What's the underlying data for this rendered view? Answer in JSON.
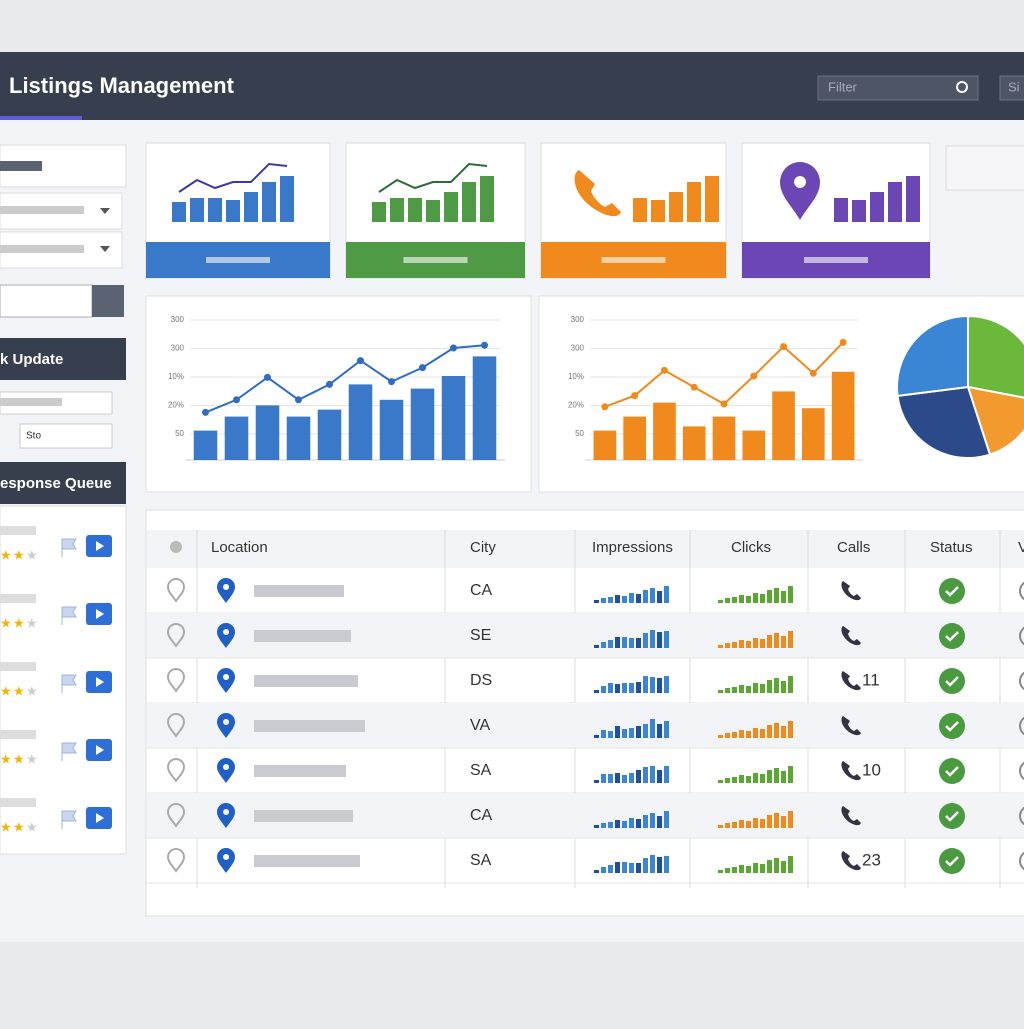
{
  "header": {
    "title": "Listings Management",
    "filter": "Filter",
    "search": "Si"
  },
  "sidebar": {
    "bulk_update": "k Update",
    "bulk_field": "Sto",
    "response_queue": "esponse Queue"
  },
  "kpi_cards": [
    {
      "color": "#3a78c9"
    },
    {
      "color": "#4e9a45"
    },
    {
      "color": "#f08a1c"
    },
    {
      "color": "#6b47b5"
    }
  ],
  "charts": [
    {
      "type": "bar",
      "tick_labels": [
        "300",
        "300",
        "10%",
        "20%",
        "50"
      ],
      "ylim": [
        0,
        100
      ],
      "bar_color": "#3a78c9",
      "line_color": "#2f6cc4",
      "bars": [
        21,
        31,
        39,
        31,
        36,
        54,
        43,
        51,
        60,
        74
      ],
      "line": [
        34,
        43,
        59,
        43,
        54,
        71,
        56,
        66,
        80,
        82
      ]
    },
    {
      "type": "bar",
      "tick_labels": [
        "300",
        "300",
        "10%",
        "20%",
        "50"
      ],
      "ylim": [
        0,
        100
      ],
      "bar_color": "#f08a1c",
      "line_color": "#f08a1c",
      "bars": [
        21,
        31,
        41,
        24,
        31,
        21,
        49,
        37,
        63
      ],
      "line": [
        38,
        46,
        64,
        52,
        40,
        60,
        81,
        62,
        84
      ]
    },
    {
      "type": "pie",
      "values": [
        28,
        17,
        28,
        27
      ],
      "colors": [
        "#6cb83a",
        "#f29a2e",
        "#2c4a8a",
        "#3a86d4"
      ]
    }
  ],
  "table": {
    "headers": [
      "Location",
      "City",
      "Impressions",
      "Clicks",
      "Calls",
      "Status",
      "V"
    ],
    "rows": [
      {
        "city": "CA",
        "calls": null,
        "clicks_color": "#5aa832"
      },
      {
        "city": "SE",
        "calls": null,
        "clicks_color": "#f08a1c"
      },
      {
        "city": "DS",
        "calls": "11",
        "clicks_color": "#5aa832"
      },
      {
        "city": "VA",
        "calls": null,
        "clicks_color": "#f08a1c"
      },
      {
        "city": "SA",
        "calls": "10",
        "clicks_color": "#5aa832"
      },
      {
        "city": "CA",
        "calls": null,
        "clicks_color": "#f08a1c"
      },
      {
        "city": "SA",
        "calls": "23",
        "clicks_color": "#5aa832"
      }
    ]
  }
}
